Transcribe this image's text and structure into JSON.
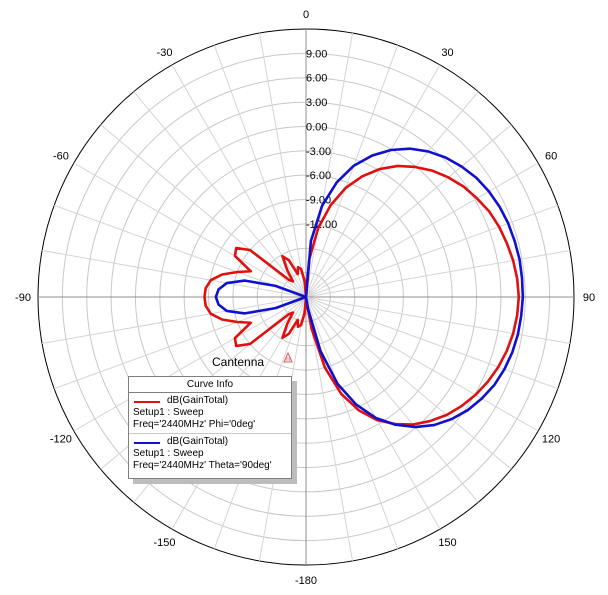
{
  "chart_data": {
    "type": "line",
    "subtype": "polar",
    "title": "",
    "annotation": "Cantenna",
    "angle_ticks": [
      "0",
      "30",
      "60",
      "90",
      "120",
      "150",
      "-180",
      "-150",
      "-120",
      "-90",
      "-60",
      "-30"
    ],
    "radial_ticks": [
      "9.00",
      "6.00",
      "3.00",
      "0.00",
      "-3.00",
      "-6.00",
      "-9.00",
      "-12.00"
    ],
    "r_range_db": [
      -21,
      12
    ],
    "grid": true,
    "angle_unit": "deg",
    "series": [
      {
        "name": "dB(GainTotal) Setup1 : Sweep Freq='2440MHz' Phi='0deg'",
        "color": "#e01010",
        "theta_deg": [
          0,
          5,
          10,
          15,
          20,
          25,
          30,
          35,
          40,
          45,
          50,
          55,
          60,
          65,
          70,
          75,
          80,
          85,
          90,
          95,
          100,
          105,
          110,
          115,
          120,
          125,
          130,
          135,
          140,
          145,
          150,
          155,
          160,
          165,
          170,
          175,
          180,
          -175,
          -170,
          -165,
          -160,
          -155,
          -150,
          -145,
          -140,
          -135,
          -130,
          -125,
          -120,
          -115,
          -110,
          -105,
          -100,
          -95,
          -90,
          -85,
          -80,
          -75,
          -70,
          -65,
          -60,
          -55,
          -50,
          -45,
          -40,
          -35,
          -30,
          -25,
          -20,
          -15,
          -10,
          -5,
          0
        ],
        "gain_db": [
          -21,
          -16.3,
          -12.4,
          -9.3,
          -6.7,
          -4.6,
          -2.8,
          -1.3,
          -0.1,
          1.0,
          1.9,
          2.7,
          3.3,
          3.9,
          4.3,
          4.6,
          4.9,
          5.1,
          5.2,
          5.1,
          4.9,
          4.6,
          4.2,
          3.7,
          3.1,
          2.4,
          1.6,
          0.6,
          -0.5,
          -1.9,
          -3.5,
          -5.6,
          -8.3,
          -12.0,
          -17.0,
          -20.5,
          -21,
          -19,
          -17.5,
          -17.2,
          -18.0,
          -16.0,
          -15.2,
          -17.0,
          -18.5,
          -18.0,
          -12.0,
          -10.5,
          -10.9,
          -13.5,
          -12.0,
          -10.3,
          -9.1,
          -8.6,
          -8.5,
          -8.6,
          -9.1,
          -10.3,
          -12.0,
          -13.5,
          -10.9,
          -10.5,
          -12.0,
          -18.0,
          -18.5,
          -17.0,
          -15.2,
          -16.0,
          -18.0,
          -17.2,
          -17.5,
          -19,
          -21
        ]
      },
      {
        "name": "dB(GainTotal) Setup1 : Sweep Freq='2440MHz' Theta='90deg'",
        "color": "#1010d0",
        "theta_deg": [
          0,
          5,
          10,
          15,
          20,
          25,
          30,
          35,
          40,
          45,
          50,
          55,
          60,
          65,
          70,
          75,
          80,
          85,
          90,
          95,
          100,
          105,
          110,
          115,
          120,
          125,
          130,
          135,
          140,
          145,
          150,
          155,
          160,
          165,
          170,
          175,
          180,
          -175,
          -170,
          -165,
          -160,
          -155,
          -150,
          -145,
          -140,
          -135,
          -130,
          -125,
          -120,
          -115,
          -110,
          -105,
          -100,
          -95,
          -90,
          -85,
          -80,
          -75,
          -70,
          -65,
          -60,
          -55,
          -50,
          -45,
          -40,
          -35,
          -30,
          -25,
          -20,
          -15,
          -10,
          -5,
          0
        ],
        "gain_db": [
          -21,
          -14.1,
          -9.6,
          -6.4,
          -3.8,
          -1.8,
          -0.1,
          1.3,
          2.4,
          3.3,
          4.0,
          4.6,
          5.0,
          5.3,
          5.5,
          5.6,
          5.7,
          5.7,
          5.7,
          5.6,
          5.5,
          5.3,
          5.0,
          4.6,
          4.0,
          3.3,
          2.4,
          1.3,
          -0.1,
          -1.8,
          -3.8,
          -6.4,
          -9.6,
          -14.1,
          -19.5,
          -21,
          -21,
          -21,
          -21,
          -21,
          -21,
          -21,
          -21,
          -21,
          -21,
          -21,
          -21,
          -21,
          -21,
          -21,
          -17.0,
          -13.2,
          -11.1,
          -10.2,
          -9.9,
          -10.2,
          -11.1,
          -13.2,
          -17.0,
          -21,
          -21,
          -21,
          -21,
          -21,
          -21,
          -21,
          -21,
          -21,
          -21,
          -21,
          -21,
          -21,
          -21
        ]
      }
    ]
  },
  "legend": {
    "title": "Curve Info",
    "entries": [
      {
        "line1": "dB(GainTotal)",
        "line2": "Setup1 : Sweep",
        "line3": "Freq='2440MHz' Phi='0deg'",
        "color": "#e01010"
      },
      {
        "line1": "dB(GainTotal)",
        "line2": "Setup1 : Sweep",
        "line3": "Freq='2440MHz' Theta='90deg'",
        "color": "#1010d0"
      }
    ]
  }
}
